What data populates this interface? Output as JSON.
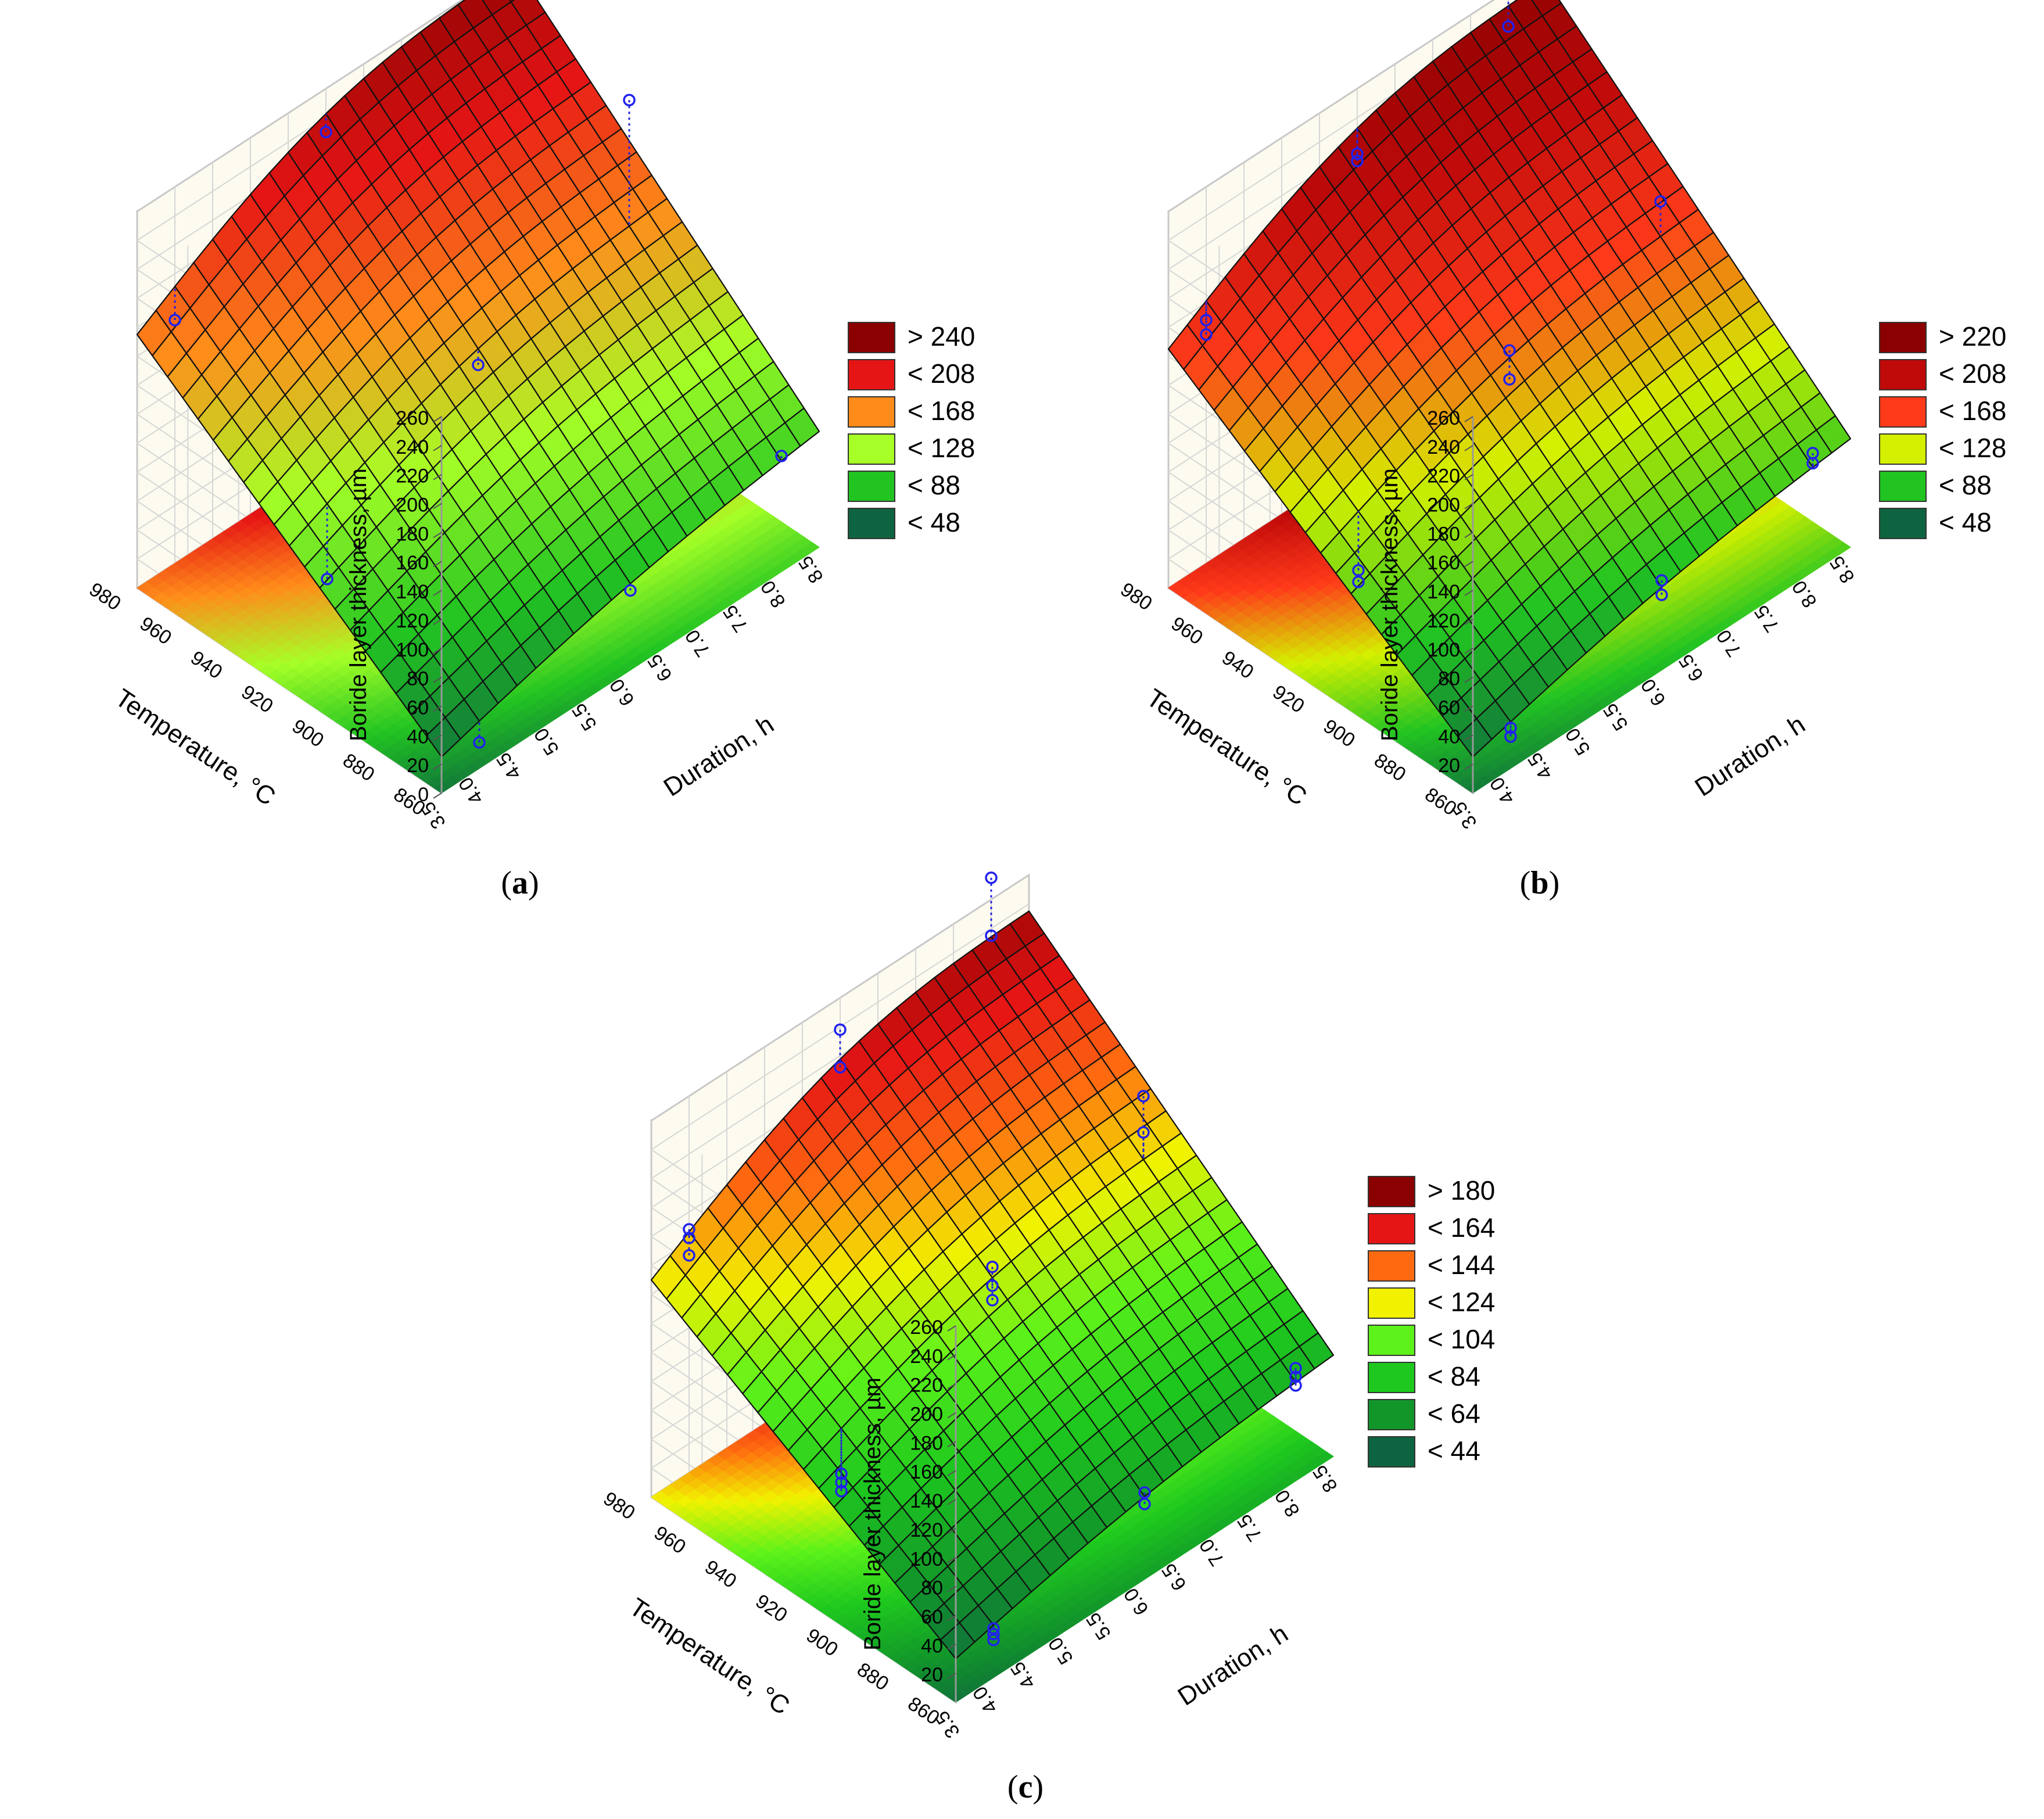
{
  "chart_data": [
    {
      "panel_id": "a",
      "caption_open": "(",
      "caption_letter": "a",
      "caption_close": ")",
      "type": "surface3d",
      "zlabel": "Boride layer thickness, µm",
      "xlabel": "Temperature, °C",
      "ylabel": "Duration, h",
      "x_ticks": [
        "860",
        "880",
        "900",
        "920",
        "940",
        "960",
        "980"
      ],
      "y_ticks": [
        "3.5",
        "4.0",
        "4.5",
        "5.0",
        "5.5",
        "6.0",
        "6.5",
        "7.0",
        "7.5",
        "8.0",
        "8.5"
      ],
      "z_ticks": [
        "0",
        "20",
        "40",
        "60",
        "80",
        "100",
        "120",
        "140",
        "160",
        "180",
        "200",
        "220",
        "240",
        "260"
      ],
      "zlim": [
        0,
        260
      ],
      "legend": [
        {
          "label": "> 240",
          "color": "#8b0000"
        },
        {
          "label": "< 208",
          "color": "#e61515"
        },
        {
          "label": "< 168",
          "color": "#ff8c1a"
        },
        {
          "label": "< 128",
          "color": "#a6ff26"
        },
        {
          "label": "< 88",
          "color": "#22c422"
        },
        {
          "label": "< 48",
          "color": "#0e6440"
        }
      ],
      "corners": {
        "low_low": 25,
        "high_low": 175,
        "low_high": 80,
        "high_high": 260
      },
      "observations": [
        {
          "temperature": 860,
          "duration": 4.0,
          "thickness": 18
        },
        {
          "temperature": 860,
          "duration": 6.0,
          "thickness": 55
        },
        {
          "temperature": 860,
          "duration": 8.0,
          "thickness": 80
        },
        {
          "temperature": 920,
          "duration": 4.0,
          "thickness": 60
        },
        {
          "temperature": 920,
          "duration": 6.0,
          "thickness": 140
        },
        {
          "temperature": 920,
          "duration": 8.0,
          "thickness": 255
        },
        {
          "temperature": 980,
          "duration": 4.0,
          "thickness": 168
        },
        {
          "temperature": 980,
          "duration": 6.0,
          "thickness": 230
        }
      ]
    },
    {
      "panel_id": "b",
      "caption_open": "(",
      "caption_letter": "b",
      "caption_close": ")",
      "type": "surface3d",
      "zlabel": "Boride layer thickness, µm",
      "xlabel": "Temperature, °C",
      "ylabel": "Duration, h",
      "x_ticks": [
        "860",
        "880",
        "900",
        "920",
        "940",
        "960",
        "980"
      ],
      "y_ticks": [
        "3.5",
        "4.0",
        "4.5",
        "5.0",
        "5.5",
        "6.0",
        "6.5",
        "7.0",
        "7.5",
        "8.0",
        "8.5"
      ],
      "z_ticks": [
        "20",
        "40",
        "60",
        "80",
        "100",
        "120",
        "140",
        "160",
        "180",
        "200",
        "220",
        "240",
        "260"
      ],
      "zlim": [
        0,
        260
      ],
      "legend": [
        {
          "label": "> 220",
          "color": "#8b0000"
        },
        {
          "label": "< 208",
          "color": "#c00a0a"
        },
        {
          "label": "< 168",
          "color": "#ff3a1a"
        },
        {
          "label": "< 128",
          "color": "#d4f000"
        },
        {
          "label": "< 88",
          "color": "#22c422"
        },
        {
          "label": "< 48",
          "color": "#0e6440"
        }
      ],
      "corners": {
        "low_low": 25,
        "high_low": 165,
        "low_high": 75,
        "high_high": 250
      },
      "observations": [
        {
          "temperature": 860,
          "duration": 4.0,
          "thickness": 22
        },
        {
          "temperature": 860,
          "duration": 4.0,
          "thickness": 28
        },
        {
          "temperature": 860,
          "duration": 6.0,
          "thickness": 52
        },
        {
          "temperature": 860,
          "duration": 6.0,
          "thickness": 62
        },
        {
          "temperature": 860,
          "duration": 8.0,
          "thickness": 75
        },
        {
          "temperature": 860,
          "duration": 8.0,
          "thickness": 82
        },
        {
          "temperature": 920,
          "duration": 4.0,
          "thickness": 58
        },
        {
          "temperature": 920,
          "duration": 4.0,
          "thickness": 66
        },
        {
          "temperature": 920,
          "duration": 6.0,
          "thickness": 130
        },
        {
          "temperature": 920,
          "duration": 6.0,
          "thickness": 150
        },
        {
          "temperature": 920,
          "duration": 8.0,
          "thickness": 185
        },
        {
          "temperature": 980,
          "duration": 4.0,
          "thickness": 158
        },
        {
          "temperature": 980,
          "duration": 4.0,
          "thickness": 168
        },
        {
          "temperature": 980,
          "duration": 6.0,
          "thickness": 210
        },
        {
          "temperature": 980,
          "duration": 6.0,
          "thickness": 215
        },
        {
          "temperature": 980,
          "duration": 8.0,
          "thickness": 235
        },
        {
          "temperature": 980,
          "duration": 8.0,
          "thickness": 260
        }
      ]
    },
    {
      "panel_id": "c",
      "caption_open": "(",
      "caption_letter": "c",
      "caption_close": ")",
      "type": "surface3d",
      "zlabel": "Boride layer thickness, µm",
      "xlabel": "Temperature, °C",
      "ylabel": "Duration, h",
      "x_ticks": [
        "860",
        "880",
        "900",
        "920",
        "940",
        "960",
        "980"
      ],
      "y_ticks": [
        "3.5",
        "4.0",
        "4.5",
        "5.0",
        "5.5",
        "6.0",
        "6.5",
        "7.0",
        "7.5",
        "8.0",
        "8.5"
      ],
      "z_ticks": [
        "20",
        "40",
        "60",
        "80",
        "100",
        "120",
        "140",
        "160",
        "180",
        "200",
        "220",
        "240",
        "260"
      ],
      "zlim": [
        0,
        260
      ],
      "legend": [
        {
          "label": "> 180",
          "color": "#8b0000"
        },
        {
          "label": "< 164",
          "color": "#e61515"
        },
        {
          "label": "< 144",
          "color": "#ff6a10"
        },
        {
          "label": "< 124",
          "color": "#f2f200"
        },
        {
          "label": "< 104",
          "color": "#5cf21a"
        },
        {
          "label": "< 84",
          "color": "#1ec81e"
        },
        {
          "label": "< 64",
          "color": "#12962a"
        },
        {
          "label": "< 44",
          "color": "#0e6440"
        }
      ],
      "corners": {
        "low_low": 30,
        "high_low": 150,
        "low_high": 70,
        "high_high": 235
      },
      "observations": [
        {
          "temperature": 860,
          "duration": 4.0,
          "thickness": 26
        },
        {
          "temperature": 860,
          "duration": 4.0,
          "thickness": 30
        },
        {
          "temperature": 860,
          "duration": 4.0,
          "thickness": 34
        },
        {
          "temperature": 860,
          "duration": 6.0,
          "thickness": 52
        },
        {
          "temperature": 860,
          "duration": 6.0,
          "thickness": 60
        },
        {
          "temperature": 860,
          "duration": 8.0,
          "thickness": 66
        },
        {
          "temperature": 860,
          "duration": 8.0,
          "thickness": 72
        },
        {
          "temperature": 860,
          "duration": 8.0,
          "thickness": 78
        },
        {
          "temperature": 920,
          "duration": 4.0,
          "thickness": 58
        },
        {
          "temperature": 920,
          "duration": 4.0,
          "thickness": 64
        },
        {
          "temperature": 920,
          "duration": 4.0,
          "thickness": 70
        },
        {
          "temperature": 920,
          "duration": 6.0,
          "thickness": 122
        },
        {
          "temperature": 920,
          "duration": 6.0,
          "thickness": 132
        },
        {
          "temperature": 920,
          "duration": 6.0,
          "thickness": 145
        },
        {
          "temperature": 920,
          "duration": 8.0,
          "thickness": 170
        },
        {
          "temperature": 920,
          "duration": 8.0,
          "thickness": 195
        },
        {
          "temperature": 980,
          "duration": 4.0,
          "thickness": 150
        },
        {
          "temperature": 980,
          "duration": 4.0,
          "thickness": 162
        },
        {
          "temperature": 980,
          "duration": 4.0,
          "thickness": 168
        },
        {
          "temperature": 980,
          "duration": 6.0,
          "thickness": 212
        },
        {
          "temperature": 980,
          "duration": 6.0,
          "thickness": 238
        },
        {
          "temperature": 980,
          "duration": 8.0,
          "thickness": 235
        },
        {
          "temperature": 980,
          "duration": 8.0,
          "thickness": 275
        }
      ]
    }
  ]
}
